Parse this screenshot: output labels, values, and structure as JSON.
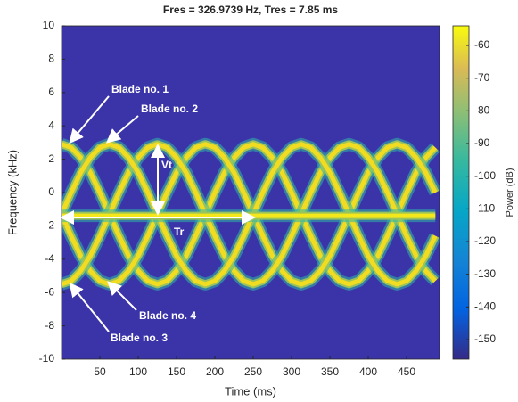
{
  "chart_data": {
    "type": "spectrogram",
    "title": "Fres = 326.9739 Hz, Tres = 7.85 ms",
    "x_label": "Time (ms)",
    "y_label": "Frequency (kHz)",
    "colorbar_label": "Power (dB)",
    "xlim": [
      0,
      493
    ],
    "xticks": [
      50,
      100,
      150,
      200,
      250,
      300,
      350,
      400,
      450
    ],
    "ylim": [
      -10,
      10
    ],
    "yticks": [
      -10,
      -8,
      -6,
      -4,
      -2,
      0,
      2,
      4,
      6,
      8,
      10
    ],
    "clim": [
      -156,
      -54
    ],
    "cticks": [
      -150,
      -140,
      -130,
      -120,
      -110,
      -100,
      -90,
      -80,
      -70,
      -60
    ],
    "background_color": "#3b33a8",
    "x": [
      0,
      12.5,
      25,
      37.5,
      50,
      62.5,
      75,
      87.5,
      100,
      112.5,
      125,
      137.5,
      150,
      162.5,
      175,
      187.5,
      200,
      212.5,
      225,
      237.5,
      250,
      262.5,
      275,
      287.5,
      300,
      312.5,
      325,
      337.5,
      350,
      362.5,
      375,
      387.5,
      400,
      412.5,
      425,
      437.5,
      450,
      462.5,
      475,
      487.5
    ],
    "series": [
      {
        "color": "#f2dc22",
        "values": [
          2.9,
          2.7,
          2.1,
          1.2,
          0.0,
          -1.3,
          -2.6,
          -3.8,
          -4.7,
          -5.3,
          -5.5,
          -5.3,
          -4.7,
          -3.8,
          -2.6,
          -1.3,
          0.0,
          1.2,
          2.1,
          2.7,
          2.9,
          2.7,
          2.1,
          1.2,
          0.0,
          -1.3,
          -2.6,
          -3.8,
          -4.7,
          -5.3,
          -5.5,
          -5.3,
          -4.7,
          -3.8,
          -2.6,
          -1.3,
          0.0,
          1.2,
          2.1,
          2.7
        ]
      },
      {
        "color": "#f2dc22",
        "values": [
          -1.3,
          -2.6,
          -3.8,
          -4.7,
          -5.3,
          -5.5,
          -5.3,
          -4.7,
          -3.8,
          -2.6,
          -1.3,
          0.0,
          1.2,
          2.1,
          2.7,
          2.9,
          2.7,
          2.1,
          1.2,
          0.0,
          -1.3,
          -2.6,
          -3.8,
          -4.7,
          -5.3,
          -5.5,
          -5.3,
          -4.7,
          -3.8,
          -2.6,
          -1.3,
          0.0,
          1.2,
          2.1,
          2.7,
          2.9,
          2.7,
          2.1,
          1.2,
          0.0
        ]
      },
      {
        "color": "#f2dc22",
        "values": [
          -5.5,
          -5.3,
          -4.7,
          -3.8,
          -2.6,
          -1.3,
          0.0,
          1.2,
          2.1,
          2.7,
          2.9,
          2.7,
          2.1,
          1.2,
          0.0,
          -1.3,
          -2.6,
          -3.8,
          -4.7,
          -5.3,
          -5.5,
          -5.3,
          -4.7,
          -3.8,
          -2.6,
          -1.3,
          0.0,
          1.2,
          2.1,
          2.7,
          2.9,
          2.7,
          2.1,
          1.2,
          0.0,
          -1.3,
          -2.6,
          -3.8,
          -4.7,
          -5.3
        ]
      },
      {
        "color": "#f2dc22",
        "values": [
          -1.3,
          0.0,
          1.2,
          2.1,
          2.7,
          2.9,
          2.7,
          2.1,
          1.2,
          0.0,
          -1.3,
          -2.6,
          -3.8,
          -4.7,
          -5.3,
          -5.5,
          -5.3,
          -4.7,
          -3.8,
          -2.6,
          -1.3,
          0.0,
          1.2,
          2.1,
          2.7,
          2.9,
          2.7,
          2.1,
          1.2,
          0.0,
          -1.3,
          -2.6,
          -3.8,
          -4.7,
          -5.3,
          -5.5,
          -5.3,
          -4.7,
          -3.8,
          -2.6
        ]
      },
      {
        "color": "#f5e81a",
        "values": [
          -1.4,
          -1.4,
          -1.4,
          -1.4,
          -1.4,
          -1.4,
          -1.4,
          -1.4,
          -1.4,
          -1.4,
          -1.4,
          -1.4,
          -1.4,
          -1.4,
          -1.4,
          -1.4,
          -1.4,
          -1.4,
          -1.4,
          -1.4,
          -1.4,
          -1.4,
          -1.4,
          -1.4,
          -1.4,
          -1.4,
          -1.4,
          -1.4,
          -1.4,
          -1.4,
          -1.4,
          -1.4,
          -1.4,
          -1.4,
          -1.4,
          -1.4,
          -1.4,
          -1.4,
          -1.4,
          -1.4
        ]
      }
    ],
    "annotations": [
      "Blade no. 1",
      "Blade no. 2",
      "Blade no. 4",
      "Blade no. 3",
      "Vt",
      "Tr"
    ]
  }
}
